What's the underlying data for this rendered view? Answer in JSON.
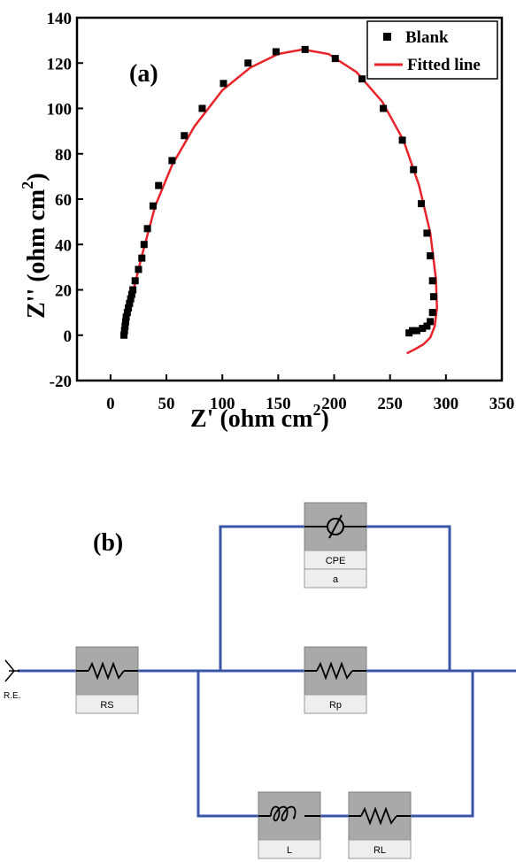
{
  "chart_data": {
    "type": "scatter",
    "panel_label": "(a)",
    "xlabel_main": "Z' (ohm cm",
    "xlabel_sup": "2",
    "xlabel_close": ")",
    "ylabel_main": "Z'' (ohm cm",
    "ylabel_sup": "2",
    "ylabel_close": ")",
    "xlim": [
      -30,
      350
    ],
    "ylim": [
      -20,
      140
    ],
    "xticks": [
      0,
      50,
      100,
      150,
      200,
      250,
      300,
      350
    ],
    "yticks": [
      -20,
      0,
      20,
      40,
      60,
      80,
      100,
      120,
      140
    ],
    "grid": false,
    "legend_position": "top-right",
    "series": [
      {
        "name": "Blank",
        "marker": "square",
        "color": "#000000",
        "x": [
          12,
          12.5,
          13,
          13.5,
          14,
          15,
          16,
          17,
          18,
          19,
          20,
          22,
          25,
          28,
          30,
          33,
          38,
          43,
          55,
          66,
          82,
          101,
          123,
          148,
          174,
          201,
          225,
          244,
          261,
          271,
          278,
          283,
          286,
          288,
          289,
          288,
          286,
          283,
          279,
          274,
          270,
          267
        ],
        "y": [
          0,
          2,
          4,
          6,
          8,
          10,
          12,
          14,
          16,
          18,
          20,
          24,
          29,
          34,
          40,
          47,
          57,
          66,
          77,
          88,
          100,
          111,
          120,
          125,
          126,
          122,
          113,
          100,
          86,
          73,
          58,
          45,
          35,
          24,
          17,
          10,
          6,
          4,
          3,
          2,
          2,
          1
        ]
      },
      {
        "name": "Fitted line",
        "marker": "line",
        "color": "#e8232a",
        "x": [
          12,
          18,
          28,
          40,
          55,
          75,
          100,
          125,
          150,
          172,
          195,
          220,
          243,
          262,
          276,
          286,
          291,
          292,
          290,
          286,
          280,
          273,
          265
        ],
        "y": [
          0,
          15,
          35,
          57,
          75,
          92,
          108,
          118,
          124,
          126,
          124,
          116,
          103,
          86,
          66,
          45,
          25,
          12,
          4,
          -1,
          -4,
          -6,
          -8
        ]
      }
    ]
  },
  "circuit": {
    "panel_label": "(b)",
    "reference_electrode": "R.E.",
    "components": [
      {
        "id": "rs",
        "label": "RS",
        "symbol": "resistor"
      },
      {
        "id": "cpe",
        "label": "CPE",
        "sublabel": "a",
        "symbol": "cpe"
      },
      {
        "id": "rp",
        "label": "Rp",
        "symbol": "resistor"
      },
      {
        "id": "l",
        "label": "L",
        "symbol": "inductor"
      },
      {
        "id": "rl",
        "label": "RL",
        "symbol": "resistor"
      }
    ],
    "wire_color": "#3a55a8"
  }
}
